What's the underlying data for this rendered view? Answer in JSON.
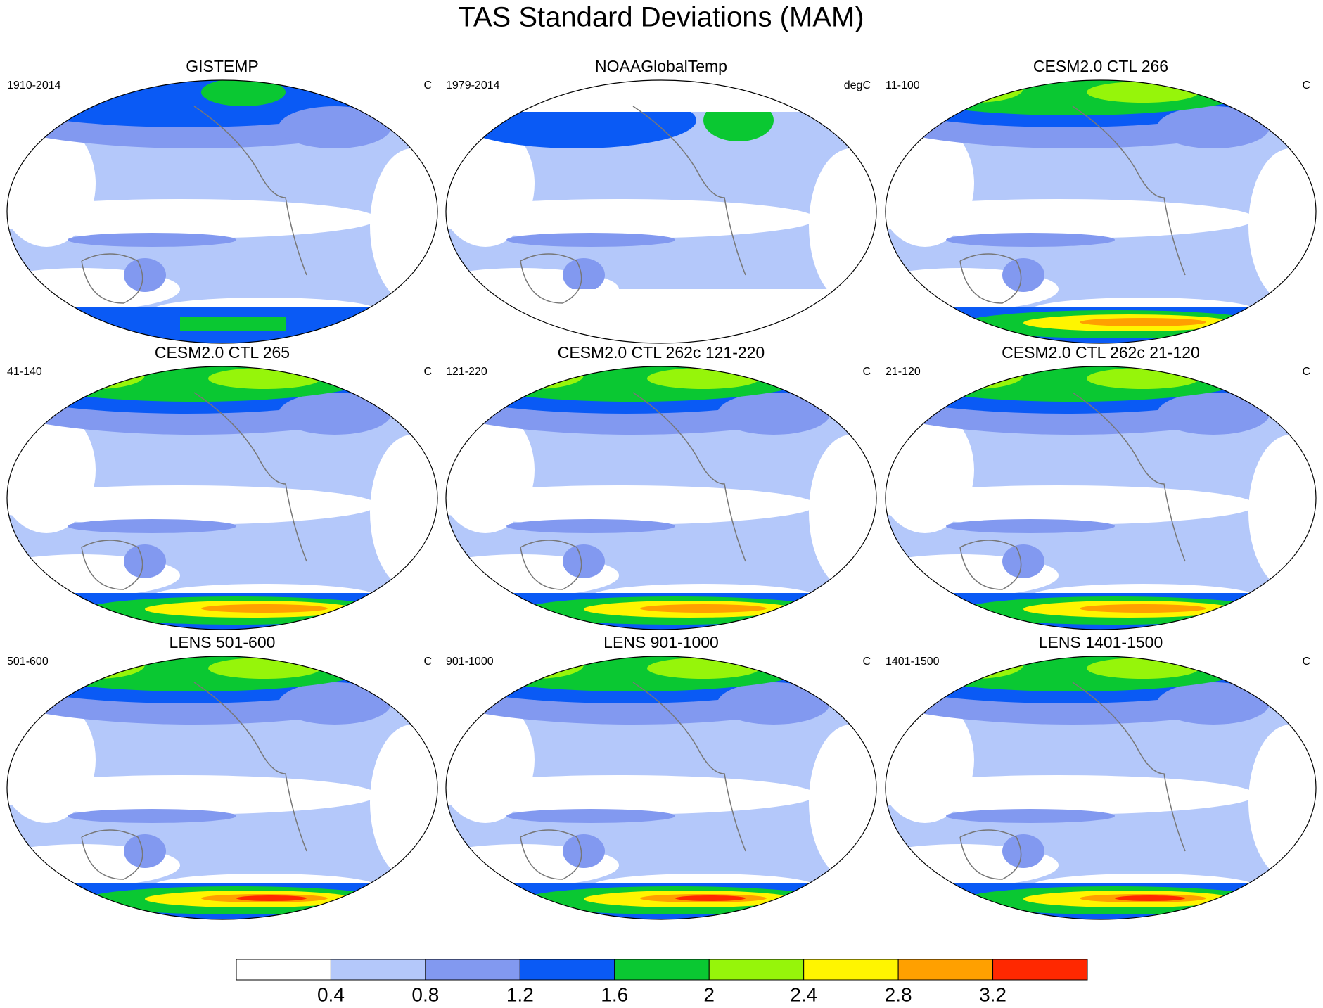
{
  "title": "TAS Standard Deviations (MAM)",
  "panels": [
    {
      "title": "GISTEMP",
      "left": "1910-2014",
      "right": "C"
    },
    {
      "title": "NOAAGlobalTemp",
      "left": "1979-2014",
      "right": "degC"
    },
    {
      "title": "CESM2.0 CTL 266",
      "left": "11-100",
      "right": "C"
    },
    {
      "title": "CESM2.0 CTL 265",
      "left": "41-140",
      "right": "C"
    },
    {
      "title": "CESM2.0 CTL 262c 121-220",
      "left": "121-220",
      "right": "C"
    },
    {
      "title": "CESM2.0 CTL 262c 21-120",
      "left": "21-120",
      "right": "C"
    },
    {
      "title": "LENS 501-600",
      "left": "501-600",
      "right": "C"
    },
    {
      "title": "LENS 901-1000",
      "left": "901-1000",
      "right": "C"
    },
    {
      "title": "LENS 1401-1500",
      "left": "1401-1500",
      "right": "C"
    }
  ],
  "colorbar": {
    "colors": [
      "#ffffff",
      "#b4c8fa",
      "#8299f0",
      "#0a5af5",
      "#0ac832",
      "#96f50a",
      "#fff500",
      "#ffa000",
      "#ff2800"
    ],
    "labels": [
      "0.4",
      "0.8",
      "1.2",
      "1.6",
      "2",
      "2.4",
      "2.8",
      "3.2"
    ]
  }
}
